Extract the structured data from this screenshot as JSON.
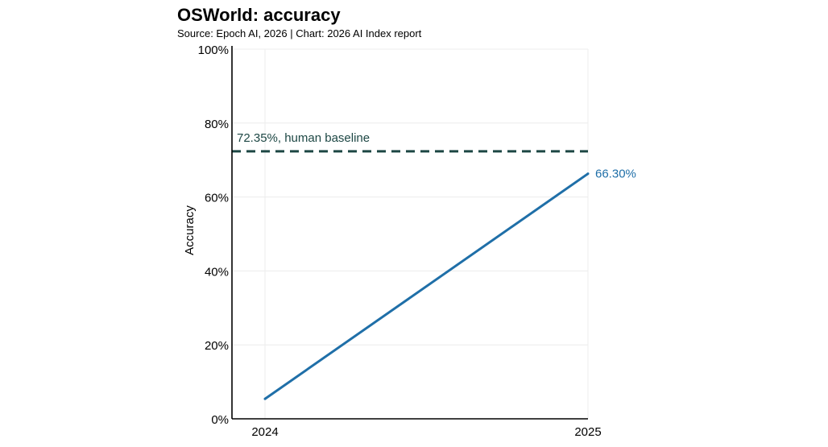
{
  "chart_data": {
    "type": "line",
    "title": "OSWorld: accuracy",
    "subtitle": "Source: Epoch AI, 2026 | Chart: 2026 AI Index report",
    "xlabel": "",
    "ylabel": "Accuracy",
    "x": [
      "2024",
      "2025"
    ],
    "ylim": [
      0,
      100
    ],
    "yticks": [
      "0%",
      "20%",
      "40%",
      "60%",
      "80%",
      "100%"
    ],
    "yticks_values": [
      0,
      20,
      40,
      60,
      80,
      100
    ],
    "grid": true,
    "series": [
      {
        "values": [
          5.4,
          66.3
        ],
        "color": "#1f6fa8",
        "end_label": "66.30%"
      }
    ],
    "reference_lines": [
      {
        "value": 72.35,
        "label": "72.35%, human baseline",
        "color": "#1d4744",
        "style": "dashed"
      }
    ]
  }
}
